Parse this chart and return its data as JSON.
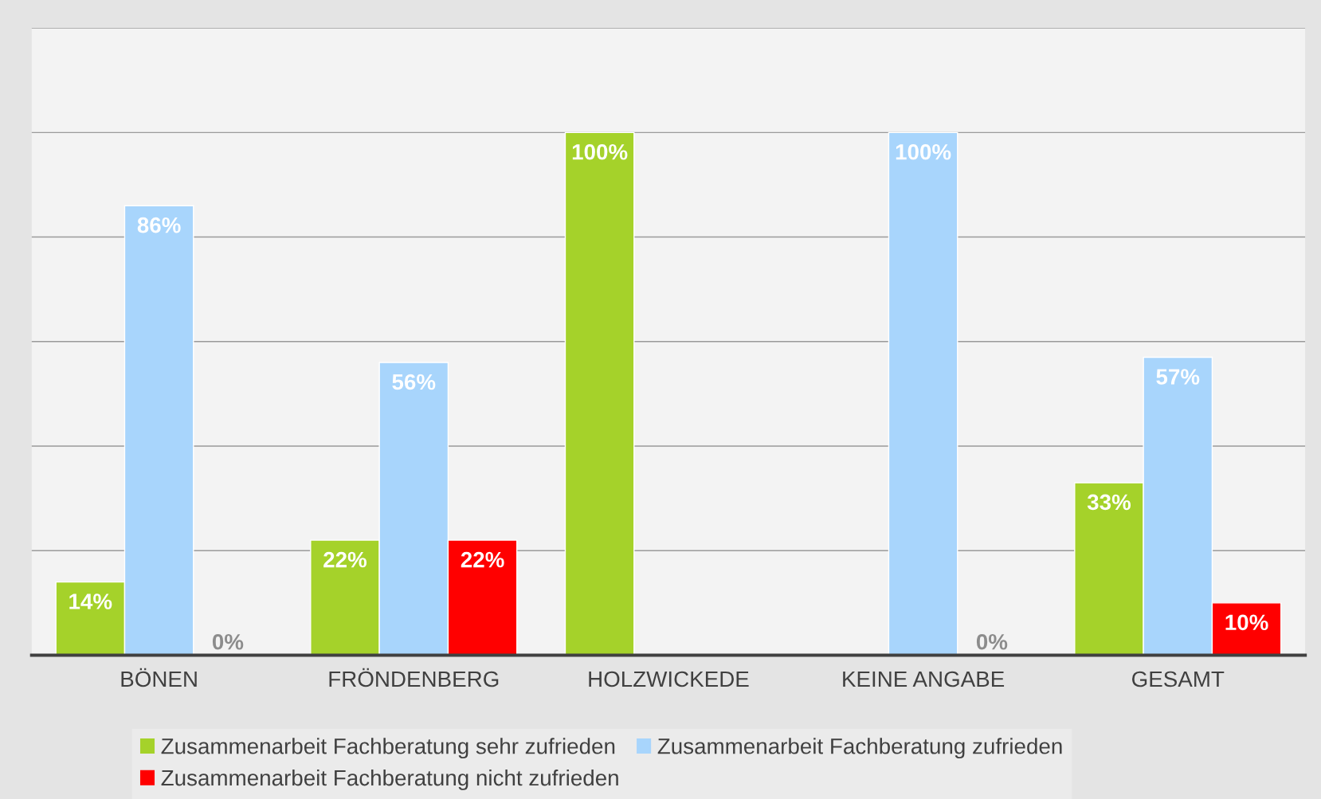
{
  "chart_data": {
    "type": "bar",
    "categories": [
      "BÖNEN",
      "FRÖNDENBERG",
      "HOLZWICKEDE",
      "KEINE ANGABE",
      "GESAMT"
    ],
    "series": [
      {
        "name": "Zusammenarbeit Fachberatung sehr zufrieden",
        "color": "#a5d22a",
        "values": [
          14,
          22,
          100,
          null,
          33
        ],
        "value_labels": [
          "14%",
          "22%",
          "100%",
          null,
          "33%"
        ]
      },
      {
        "name": "Zusammenarbeit Fachberatung zufrieden",
        "color": "#a8d5fc",
        "values": [
          86,
          56,
          null,
          100,
          57
        ],
        "value_labels": [
          "86%",
          "56%",
          null,
          "100%",
          "57%"
        ]
      },
      {
        "name": "Zusammenarbeit Fachberatung nicht zufrieden",
        "color": "#ff0000",
        "values": [
          0,
          22,
          null,
          0,
          10
        ],
        "value_labels": [
          "0%",
          "22%",
          null,
          "0%",
          "10%"
        ]
      }
    ],
    "ylim": [
      0,
      120
    ],
    "yticks": [
      {
        "value": 0,
        "label": null
      },
      {
        "value": 20,
        "label": null
      },
      {
        "value": 40,
        "label": null
      },
      {
        "value": 60,
        "label": null
      },
      {
        "value": 80,
        "label": null
      },
      {
        "value": 100,
        "label": null
      },
      {
        "value": 120,
        "label": null
      }
    ],
    "tick_labels": "x",
    "grid": "y",
    "legend": "bottom"
  }
}
